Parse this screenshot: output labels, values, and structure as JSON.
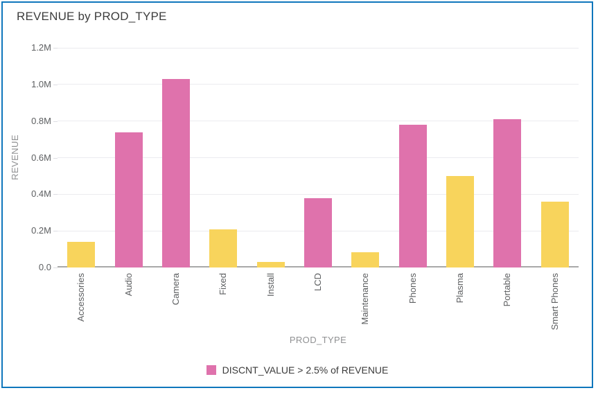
{
  "colors": {
    "bar_highlight": "#df72ac",
    "bar_normal": "#f8d45c",
    "widget_border": "#0e76bc",
    "gridline": "#ebebef",
    "axis_line": "#a8a8a8"
  },
  "chart_data": {
    "type": "bar",
    "title": "REVENUE by PROD_TYPE",
    "xlabel": "PROD_TYPE",
    "ylabel": "REVENUE",
    "unit": "millions",
    "ylim": [
      0,
      1.2
    ],
    "ytick_interval": 0.2,
    "ytick_labels": [
      "0.0",
      "0.2M",
      "0.4M",
      "0.6M",
      "0.8M",
      "1.0M",
      "1.2M"
    ],
    "categories": [
      "Accessories",
      "Audio",
      "Camera",
      "Fixed",
      "Install",
      "LCD",
      "Maintenance",
      "Phones",
      "Plasma",
      "Portable",
      "Smart Phones"
    ],
    "values": [
      0.14,
      0.74,
      1.03,
      0.21,
      0.03,
      0.38,
      0.085,
      0.78,
      0.5,
      0.81,
      0.36
    ],
    "highlighted": [
      false,
      true,
      true,
      false,
      false,
      true,
      false,
      true,
      false,
      true,
      false
    ],
    "grid": "horizontal",
    "legend_position": "bottom",
    "legend": [
      {
        "label": "DISCNT_VALUE > 2.5% of REVENUE",
        "color": "#df72ac"
      }
    ]
  }
}
